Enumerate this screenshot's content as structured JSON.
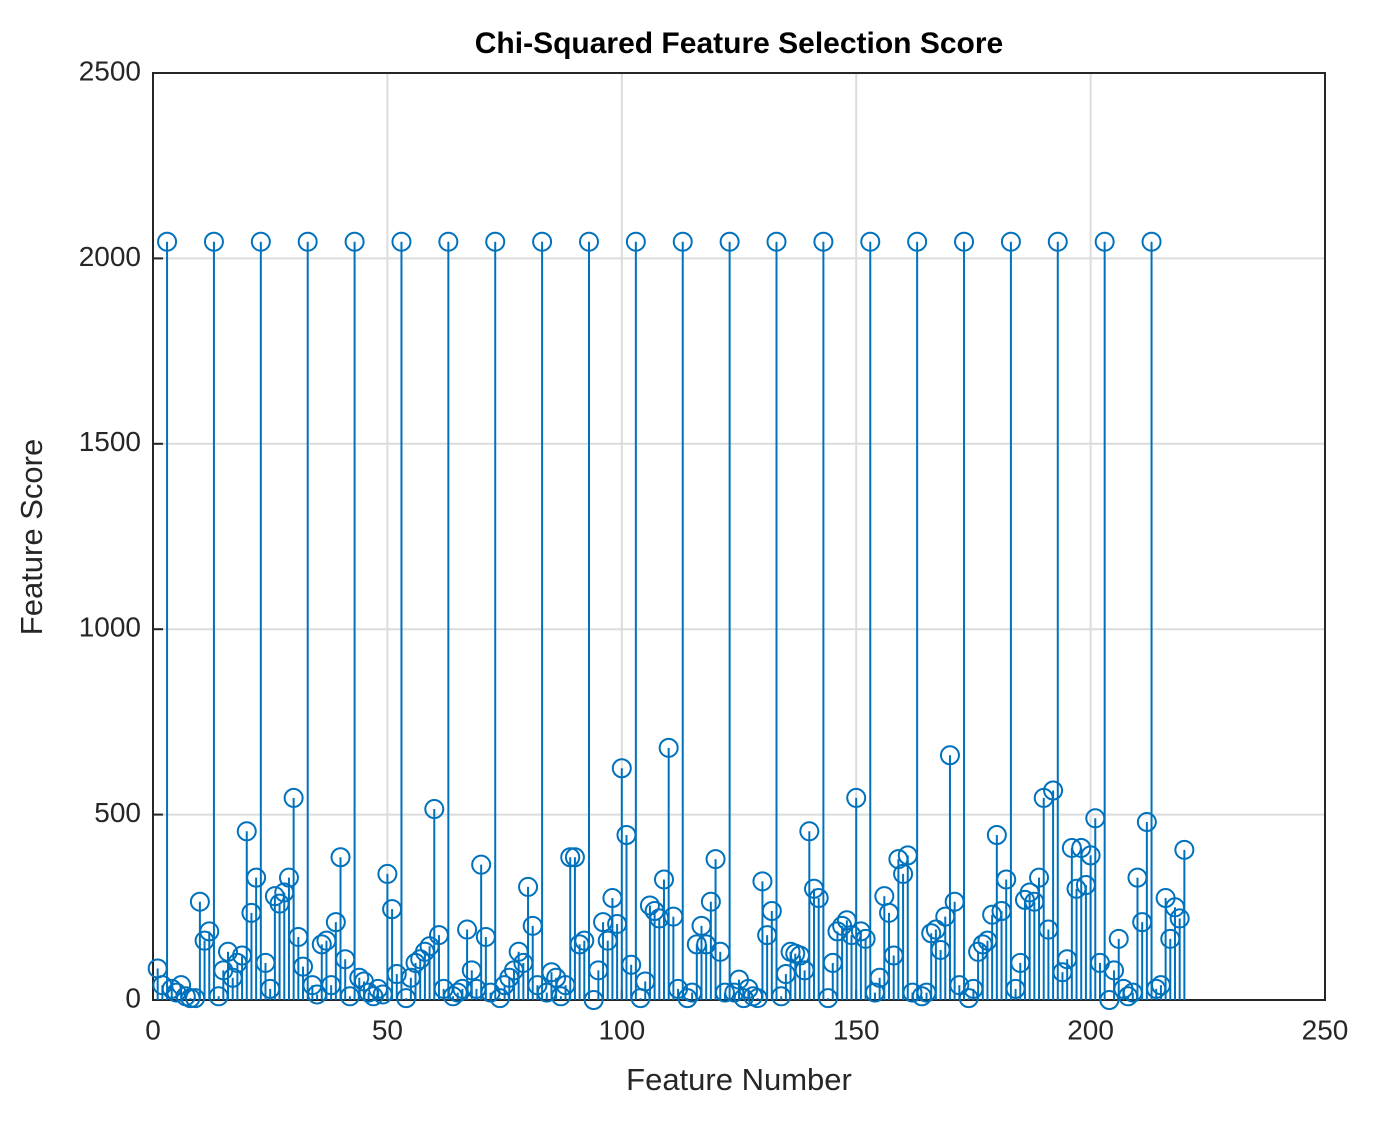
{
  "chart_data": {
    "type": "stem",
    "title": "Chi-Squared Feature Selection Score",
    "xlabel": "Feature Number",
    "ylabel": "Feature Score",
    "xlim": [
      0,
      250
    ],
    "xticks": [
      0,
      50,
      100,
      150,
      200,
      250
    ],
    "ylim": [
      0,
      2500
    ],
    "yticks": [
      0,
      500,
      1000,
      1500,
      2000,
      2500
    ],
    "grid": true,
    "series": [
      {
        "color": "#0072bd",
        "x": [
          1,
          2,
          3,
          4,
          5,
          6,
          7,
          8,
          9,
          10,
          11,
          12,
          13,
          14,
          15,
          16,
          17,
          18,
          19,
          20,
          21,
          22,
          23,
          24,
          25,
          26,
          27,
          28,
          29,
          30,
          31,
          32,
          33,
          34,
          35,
          36,
          37,
          38,
          39,
          40,
          41,
          42,
          43,
          44,
          45,
          46,
          47,
          48,
          49,
          50,
          51,
          52,
          53,
          54,
          55,
          56,
          57,
          58,
          59,
          60,
          61,
          62,
          63,
          64,
          65,
          66,
          67,
          68,
          69,
          70,
          71,
          72,
          73,
          74,
          75,
          76,
          77,
          78,
          79,
          80,
          81,
          82,
          83,
          84,
          85,
          86,
          87,
          88,
          89,
          90,
          91,
          92,
          93,
          94,
          95,
          96,
          97,
          98,
          99,
          100,
          101,
          102,
          103,
          104,
          105,
          106,
          107,
          108,
          109,
          110,
          111,
          112,
          113,
          114,
          115,
          116,
          117,
          118,
          119,
          120,
          121,
          122,
          123,
          124,
          125,
          126,
          127,
          128,
          129,
          130,
          131,
          132,
          133,
          134,
          135,
          136,
          137,
          138,
          139,
          140,
          141,
          142,
          143,
          144,
          145,
          146,
          147,
          148,
          149,
          150,
          151,
          152,
          153,
          154,
          155,
          156,
          157,
          158,
          159,
          160,
          161,
          162,
          163,
          164,
          165,
          166,
          167,
          168,
          169,
          170,
          171,
          172,
          173,
          174,
          175,
          176,
          177,
          178,
          179,
          180,
          181,
          182,
          183,
          184,
          185,
          186,
          187,
          188,
          189,
          190,
          191,
          192,
          193,
          194,
          195,
          196,
          197,
          198,
          199,
          200,
          201,
          202,
          203,
          204,
          205,
          206,
          207,
          208,
          209,
          210,
          211,
          212,
          213,
          214,
          215,
          216,
          217,
          218,
          219,
          220
        ],
        "values": [
          85,
          40,
          2045,
          30,
          20,
          40,
          10,
          5,
          5,
          265,
          160,
          185,
          2045,
          10,
          80,
          130,
          60,
          100,
          120,
          455,
          235,
          330,
          2045,
          100,
          30,
          280,
          260,
          290,
          330,
          545,
          170,
          90,
          2045,
          40,
          15,
          150,
          160,
          40,
          210,
          385,
          110,
          10,
          2045,
          60,
          50,
          20,
          10,
          30,
          15,
          340,
          245,
          70,
          2045,
          5,
          60,
          100,
          110,
          130,
          145,
          515,
          175,
          30,
          2045,
          10,
          20,
          30,
          190,
          80,
          30,
          365,
          170,
          20,
          2045,
          5,
          40,
          60,
          80,
          130,
          100,
          305,
          200,
          40,
          2045,
          20,
          75,
          60,
          10,
          40,
          385,
          385,
          150,
          160,
          2045,
          0,
          80,
          210,
          160,
          275,
          205,
          625,
          445,
          95,
          2045,
          5,
          50,
          255,
          240,
          220,
          325,
          680,
          225,
          30,
          2045,
          5,
          20,
          150,
          200,
          150,
          265,
          380,
          130,
          20,
          2045,
          20,
          55,
          5,
          30,
          10,
          5,
          320,
          175,
          240,
          2045,
          10,
          70,
          130,
          125,
          120,
          80,
          455,
          300,
          275,
          2045,
          5,
          100,
          185,
          200,
          215,
          175,
          545,
          185,
          165,
          2045,
          20,
          60,
          280,
          235,
          120,
          380,
          340,
          390,
          20,
          2045,
          10,
          20,
          180,
          190,
          135,
          225,
          660,
          265,
          40,
          2045,
          5,
          30,
          130,
          150,
          160,
          230,
          445,
          240,
          325,
          2045,
          30,
          100,
          270,
          290,
          265,
          330,
          545,
          190,
          565,
          2045,
          75,
          110,
          410,
          300,
          410,
          310,
          390,
          490,
          100,
          2045,
          0,
          80,
          165,
          30,
          10,
          20,
          330,
          210,
          480,
          2045,
          30,
          40,
          275,
          165,
          250,
          220,
          405
        ]
      }
    ]
  }
}
